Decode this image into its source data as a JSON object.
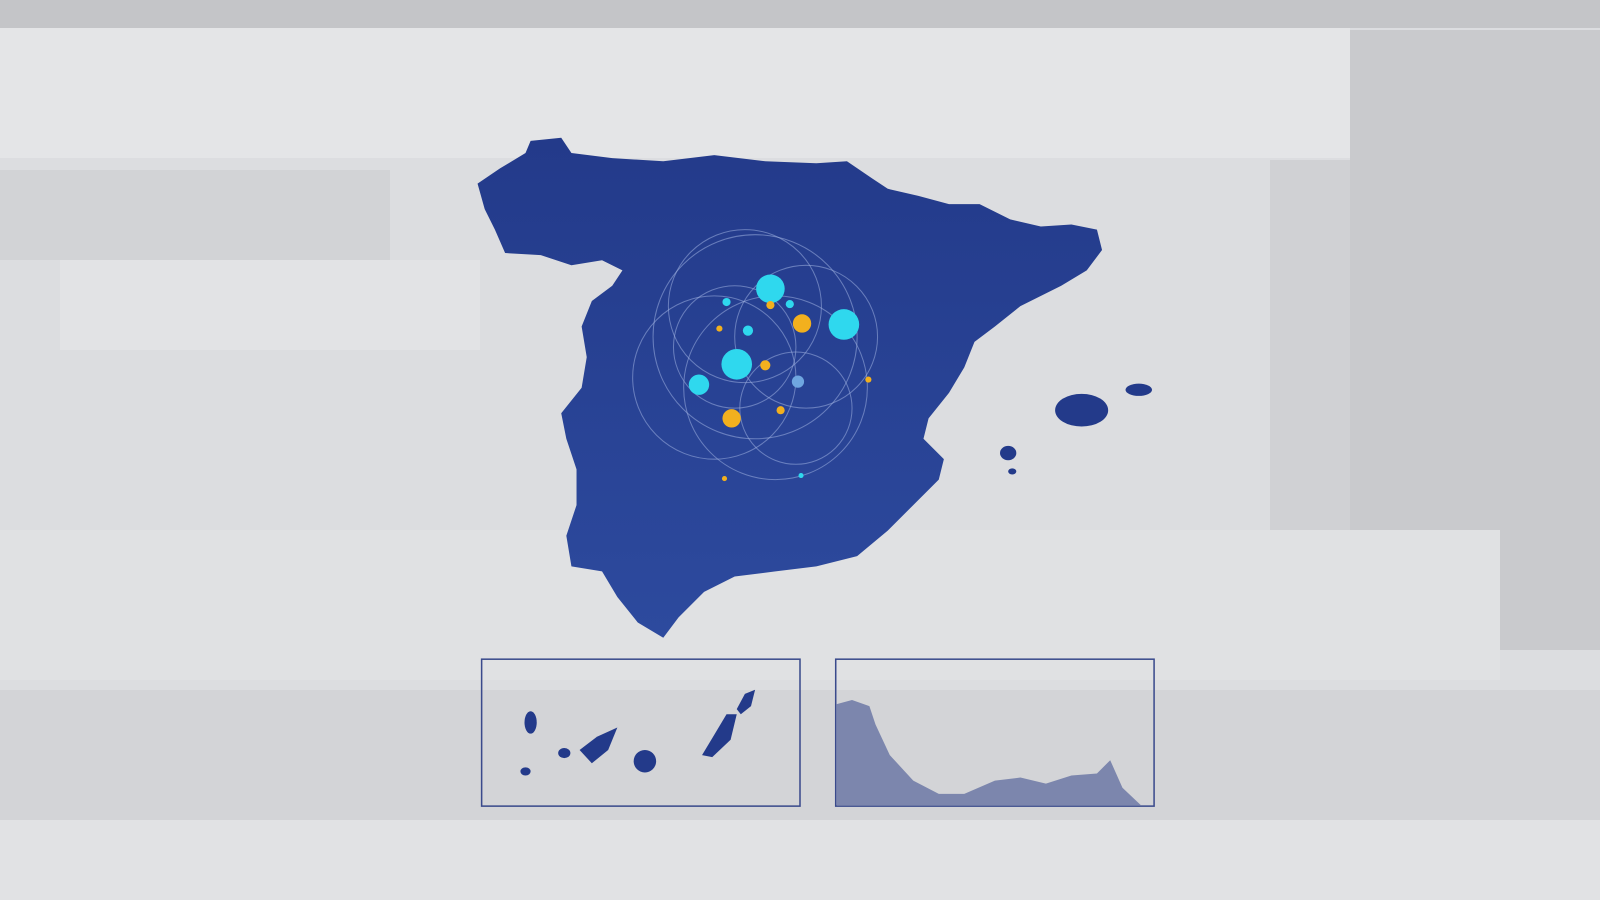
{
  "colors": {
    "background": "#dcdde0",
    "map_fill": "#233a8a",
    "map_fill_light": "#2d4a9e",
    "dot_cyan": "#2fd8ee",
    "dot_orange": "#f2b01e",
    "dot_pale_blue": "#6fa6e0",
    "inset_border": "#3a4a8c",
    "coast_fill": "#7c86ad"
  },
  "insets": [
    {
      "name": "canary-islands"
    },
    {
      "name": "ceuta-melilla-coast"
    }
  ]
}
